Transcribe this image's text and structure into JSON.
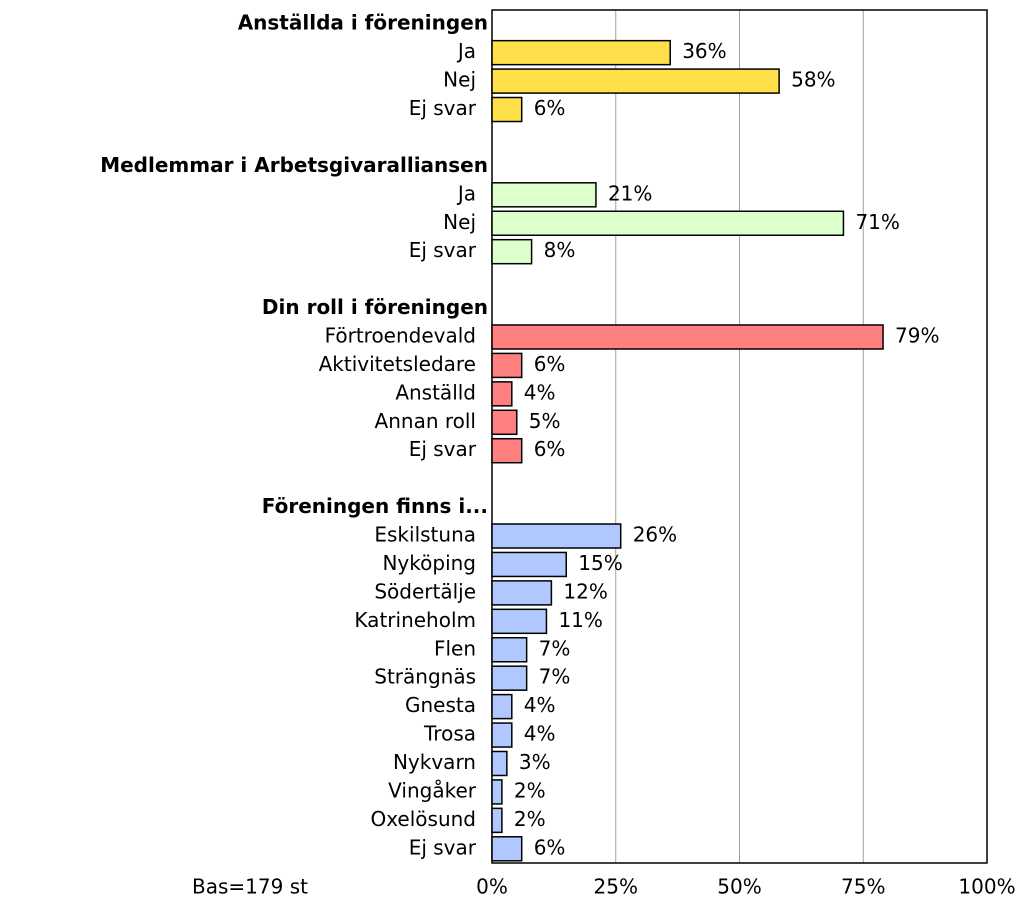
{
  "chart_data": {
    "type": "grouped_bar",
    "orientation": "horizontal",
    "groups": [
      {
        "name": "Anställda i föreningen",
        "color": "#ffe04a",
        "categories": [
          "Ja",
          "Nej",
          "Ej svar"
        ],
        "values": [
          36,
          58,
          6
        ],
        "value_labels": [
          "36%",
          "58%",
          "6%"
        ]
      },
      {
        "name": "Medlemmar i Arbetsgivaralliansen",
        "color": "#dcffcc",
        "categories": [
          "Ja",
          "Nej",
          "Ej svar"
        ],
        "values": [
          21,
          71,
          8
        ],
        "value_labels": [
          "21%",
          "71%",
          "8%"
        ]
      },
      {
        "name": "Din roll i föreningen",
        "color": "#ff8080",
        "categories": [
          "Förtroendevald",
          "Aktivitetsledare",
          "Anställd",
          "Annan roll",
          "Ej svar"
        ],
        "values": [
          79,
          6,
          4,
          5,
          6
        ],
        "value_labels": [
          "79%",
          "6%",
          "4%",
          "5%",
          "6%"
        ]
      },
      {
        "name": "Föreningen finns i...",
        "color": "#b0c8ff",
        "categories": [
          "Eskilstuna",
          "Nyköping",
          "Södertälje",
          "Katrineholm",
          "Flen",
          "Strängnäs",
          "Gnesta",
          "Trosa",
          "Nykvarn",
          "Vingåker",
          "Oxelösund",
          "Ej svar"
        ],
        "values": [
          26,
          15,
          12,
          11,
          7,
          7,
          4,
          4,
          3,
          2,
          2,
          6
        ],
        "value_labels": [
          "26%",
          "15%",
          "12%",
          "11%",
          "7%",
          "7%",
          "4%",
          "4%",
          "3%",
          "2%",
          "2%",
          "6%"
        ]
      }
    ],
    "xlim": [
      0,
      100
    ],
    "xticks": [
      {
        "value": 0,
        "label": "0%"
      },
      {
        "value": 25,
        "label": "25%"
      },
      {
        "value": 50,
        "label": "50%"
      },
      {
        "value": 75,
        "label": "75%"
      },
      {
        "value": 100,
        "label": "100%"
      }
    ],
    "grid": true,
    "annotation": "Bas=179 st"
  }
}
